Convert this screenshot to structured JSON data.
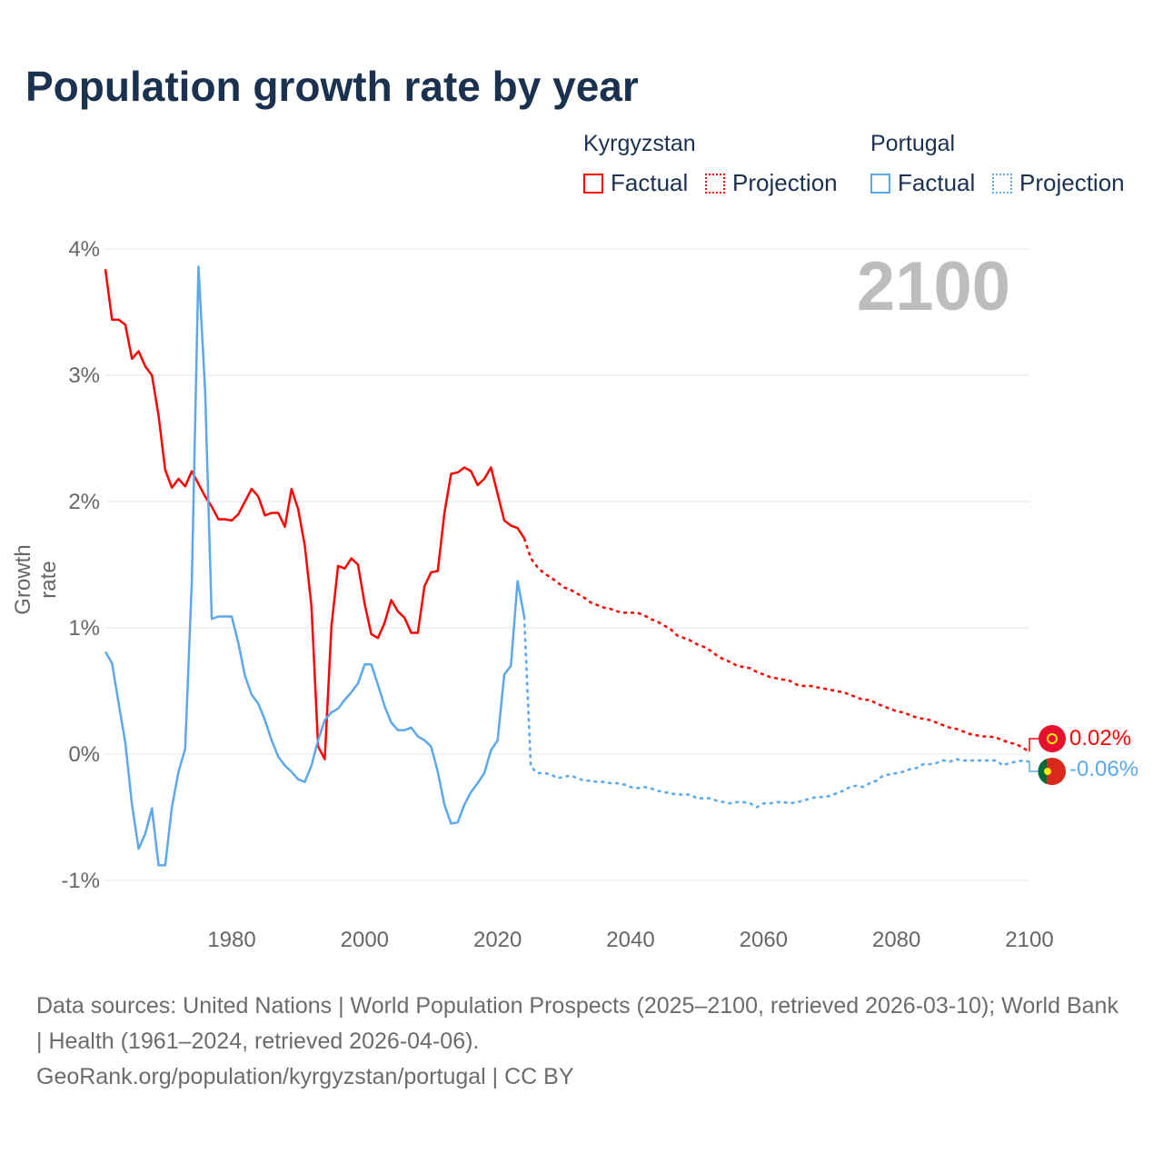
{
  "chart_data": {
    "type": "line",
    "title": "Population growth rate by year",
    "ylabel": "Growth rate",
    "xlabel": "",
    "xlim": [
      1961,
      2100
    ],
    "ylim": [
      -1,
      4
    ],
    "yticks": [
      4,
      3,
      2,
      1,
      0,
      -1
    ],
    "ytick_labels": [
      "4%",
      "3%",
      "2%",
      "1%",
      "0%",
      "-1%"
    ],
    "xticks": [
      1980,
      2000,
      2020,
      2040,
      2060,
      2080,
      2100
    ],
    "xtick_labels": [
      "1980",
      "2000",
      "2020",
      "2040",
      "2060",
      "2080",
      "2100"
    ],
    "grid": true,
    "legend_position": "top-right",
    "current_year": "2100",
    "series": [
      {
        "name": "Kyrgyzstan",
        "color": "#ff0000",
        "factual_label": "Factual",
        "projection_label": "Projection",
        "factual_start": 1961,
        "factual": [
          3.84,
          3.44,
          3.44,
          3.4,
          3.13,
          3.19,
          3.07,
          3.0,
          2.68,
          2.25,
          2.11,
          2.18,
          2.12,
          2.24,
          2.14,
          2.04,
          1.96,
          1.86,
          1.86,
          1.85,
          1.9,
          2.0,
          2.1,
          2.04,
          1.89,
          1.91,
          1.91,
          1.8,
          2.1,
          1.94,
          1.65,
          1.17,
          0.06,
          -0.04,
          1.01,
          1.49,
          1.47,
          1.55,
          1.5,
          1.19,
          0.95,
          0.92,
          1.04,
          1.22,
          1.13,
          1.08,
          0.96,
          0.96,
          1.33,
          1.44,
          1.45,
          1.91,
          2.22,
          2.23,
          2.27,
          2.24,
          2.13,
          2.18,
          2.27,
          2.06,
          1.85,
          1.81,
          1.79,
          1.71
        ],
        "projection_start": 2025,
        "projection": [
          1.55,
          1.48,
          1.43,
          1.4,
          1.36,
          1.32,
          1.3,
          1.27,
          1.24,
          1.2,
          1.18,
          1.16,
          1.15,
          1.13,
          1.12,
          1.12,
          1.12,
          1.1,
          1.07,
          1.05,
          1.02,
          0.99,
          0.94,
          0.92,
          0.9,
          0.87,
          0.85,
          0.82,
          0.78,
          0.75,
          0.73,
          0.7,
          0.69,
          0.68,
          0.65,
          0.63,
          0.61,
          0.6,
          0.59,
          0.58,
          0.55,
          0.54,
          0.54,
          0.53,
          0.52,
          0.51,
          0.5,
          0.49,
          0.47,
          0.45,
          0.43,
          0.43,
          0.4,
          0.38,
          0.36,
          0.34,
          0.33,
          0.31,
          0.29,
          0.28,
          0.27,
          0.25,
          0.23,
          0.21,
          0.2,
          0.18,
          0.16,
          0.15,
          0.14,
          0.14,
          0.13,
          0.11,
          0.09,
          0.08,
          0.05,
          0.02
        ],
        "end_label": "0.02%"
      },
      {
        "name": "Portugal",
        "color": "#5ba8ec",
        "factual_label": "Factual",
        "projection_label": "Projection",
        "factual_start": 1961,
        "factual": [
          0.81,
          0.72,
          0.4,
          0.09,
          -0.4,
          -0.75,
          -0.63,
          -0.43,
          -0.88,
          -0.88,
          -0.42,
          -0.14,
          0.04,
          1.37,
          3.86,
          2.88,
          1.07,
          1.09,
          1.09,
          1.09,
          0.88,
          0.62,
          0.47,
          0.4,
          0.27,
          0.11,
          -0.02,
          -0.09,
          -0.14,
          -0.2,
          -0.22,
          -0.09,
          0.11,
          0.27,
          0.33,
          0.36,
          0.43,
          0.49,
          0.56,
          0.71,
          0.71,
          0.55,
          0.38,
          0.25,
          0.19,
          0.19,
          0.21,
          0.14,
          0.11,
          0.06,
          -0.14,
          -0.4,
          -0.55,
          -0.54,
          -0.4,
          -0.3,
          -0.23,
          -0.15,
          0.03,
          0.11,
          0.63,
          0.7,
          1.37,
          1.09
        ],
        "projection_start": 2025,
        "projection": [
          -0.1,
          -0.15,
          -0.15,
          -0.16,
          -0.19,
          -0.18,
          -0.17,
          -0.19,
          -0.21,
          -0.21,
          -0.22,
          -0.22,
          -0.23,
          -0.23,
          -0.24,
          -0.26,
          -0.27,
          -0.26,
          -0.27,
          -0.29,
          -0.3,
          -0.31,
          -0.32,
          -0.32,
          -0.32,
          -0.35,
          -0.35,
          -0.35,
          -0.37,
          -0.38,
          -0.39,
          -0.38,
          -0.38,
          -0.39,
          -0.42,
          -0.39,
          -0.39,
          -0.38,
          -0.38,
          -0.39,
          -0.38,
          -0.37,
          -0.35,
          -0.34,
          -0.34,
          -0.33,
          -0.31,
          -0.29,
          -0.26,
          -0.25,
          -0.26,
          -0.23,
          -0.21,
          -0.17,
          -0.16,
          -0.15,
          -0.14,
          -0.12,
          -0.11,
          -0.08,
          -0.08,
          -0.07,
          -0.05,
          -0.06,
          -0.04,
          -0.05,
          -0.05,
          -0.05,
          -0.05,
          -0.05,
          -0.05,
          -0.09,
          -0.07,
          -0.06,
          -0.05,
          -0.06
        ],
        "end_label": "-0.06%"
      }
    ]
  },
  "footer": {
    "sources": "Data sources: United Nations | World Population Prospects (2025–2100, retrieved 2026-03-10); World Bank | Health (1961–2024, retrieved 2026-04-06).",
    "url": "GeoRank.org/population/kyrgyzstan/portugal | CC BY"
  }
}
